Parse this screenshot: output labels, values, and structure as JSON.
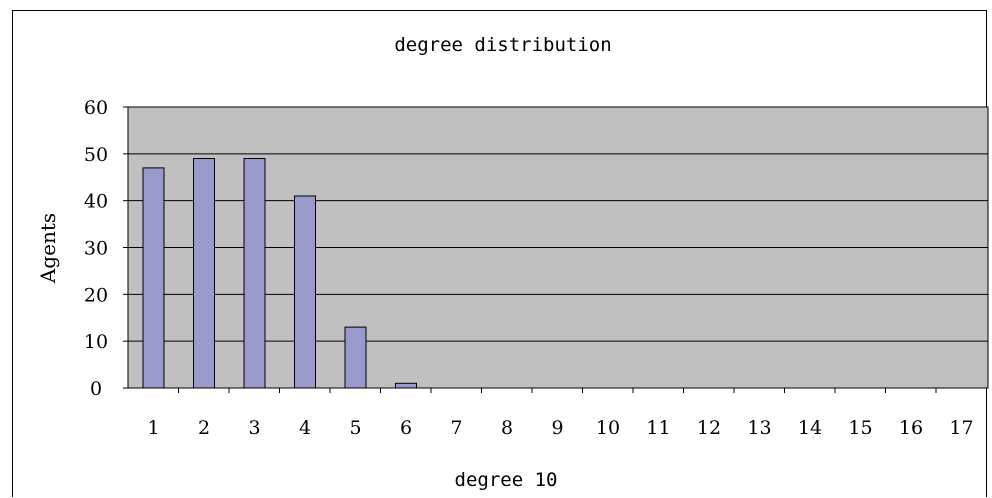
{
  "chart_data": {
    "type": "bar",
    "title": "degree distribution",
    "xlabel": "degree 10",
    "ylabel": "Agents",
    "categories": [
      "1",
      "2",
      "3",
      "4",
      "5",
      "6",
      "7",
      "8",
      "9",
      "10",
      "11",
      "12",
      "13",
      "14",
      "15",
      "16",
      "17"
    ],
    "values": [
      47,
      49,
      49,
      41,
      13,
      1,
      0,
      0,
      0,
      0,
      0,
      0,
      0,
      0,
      0,
      0,
      0
    ],
    "ylim": [
      0,
      60
    ],
    "yticks": [
      0,
      10,
      20,
      30,
      40,
      50,
      60
    ],
    "grid": true,
    "legend": "none",
    "colors": {
      "bar_fill": "#9999cc",
      "plot_background": "#c0c0c0",
      "bar_stroke": "#000000",
      "gridline": "#000000"
    }
  }
}
